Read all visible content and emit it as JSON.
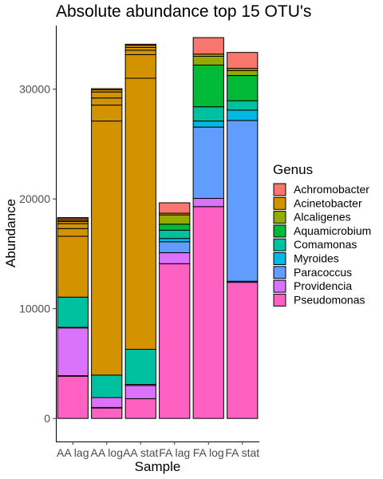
{
  "chart_data": {
    "type": "bar",
    "stacked": true,
    "title": "Absolute abundance top 15 OTU's",
    "xlabel": "Sample",
    "ylabel": "Abundance",
    "ylim": [
      -2100,
      35800
    ],
    "yticks": [
      0,
      10000,
      20000,
      30000
    ],
    "grid": false,
    "legend_position": "right",
    "legend_title": "Genus",
    "categories": [
      "AA lag",
      "AA log",
      "AA stat",
      "FA lag",
      "FA log",
      "FA stat"
    ],
    "genera": [
      {
        "name": "Achromobacter",
        "color": "#F8766D"
      },
      {
        "name": "Acinetobacter",
        "color": "#D39200"
      },
      {
        "name": "Alcaligenes",
        "color": "#93AA00"
      },
      {
        "name": "Aquamicrobium",
        "color": "#00BA38"
      },
      {
        "name": "Comamonas",
        "color": "#00C19F"
      },
      {
        "name": "Myroides",
        "color": "#00B9E3"
      },
      {
        "name": "Paracoccus",
        "color": "#619CFF"
      },
      {
        "name": "Providencia",
        "color": "#DB72FB"
      },
      {
        "name": "Pseudomonas",
        "color": "#FF61C3"
      }
    ],
    "bars": [
      {
        "category": "AA lag",
        "segments": [
          {
            "genus": "Pseudomonas",
            "value": 3850
          },
          {
            "genus": "Providencia",
            "value": 50
          },
          {
            "genus": "Providencia",
            "value": 4350
          },
          {
            "genus": "Comamonas",
            "value": 50
          },
          {
            "genus": "Comamonas",
            "value": 2750
          },
          {
            "genus": "Acinetobacter",
            "value": 5550
          },
          {
            "genus": "Acinetobacter",
            "value": 700
          },
          {
            "genus": "Acinetobacter",
            "value": 450
          },
          {
            "genus": "Acinetobacter",
            "value": 200
          },
          {
            "genus": "Acinetobacter",
            "value": 100
          },
          {
            "genus": "Acinetobacter",
            "value": 150
          },
          {
            "genus": "Achromobacter",
            "value": 100
          }
        ]
      },
      {
        "category": "AA log",
        "segments": [
          {
            "genus": "Pseudomonas",
            "value": 950
          },
          {
            "genus": "Providencia",
            "value": 50
          },
          {
            "genus": "Providencia",
            "value": 900
          },
          {
            "genus": "Comamonas",
            "value": 2050
          },
          {
            "genus": "Acinetobacter",
            "value": 23150
          },
          {
            "genus": "Acinetobacter",
            "value": 1450
          },
          {
            "genus": "Acinetobacter",
            "value": 650
          },
          {
            "genus": "Acinetobacter",
            "value": 550
          },
          {
            "genus": "Acinetobacter",
            "value": 200
          },
          {
            "genus": "Acinetobacter",
            "value": 100
          }
        ]
      },
      {
        "category": "AA stat",
        "segments": [
          {
            "genus": "Pseudomonas",
            "value": 1800
          },
          {
            "genus": "Providencia",
            "value": 1200
          },
          {
            "genus": "Providencia",
            "value": 100
          },
          {
            "genus": "Comamonas",
            "value": 3200
          },
          {
            "genus": "Acinetobacter",
            "value": 24700
          },
          {
            "genus": "Acinetobacter",
            "value": 2150
          },
          {
            "genus": "Acinetobacter",
            "value": 400
          },
          {
            "genus": "Acinetobacter",
            "value": 250
          },
          {
            "genus": "Acinetobacter",
            "value": 200
          },
          {
            "genus": "Achromobacter",
            "value": 100
          }
        ]
      },
      {
        "category": "FA lag",
        "segments": [
          {
            "genus": "Pseudomonas",
            "value": 14100
          },
          {
            "genus": "Providencia",
            "value": 1000
          },
          {
            "genus": "Paracoccus",
            "value": 1000
          },
          {
            "genus": "Myroides",
            "value": 300
          },
          {
            "genus": "Comamonas",
            "value": 750
          },
          {
            "genus": "Aquamicrobium",
            "value": 550
          },
          {
            "genus": "Alcaligenes",
            "value": 850
          },
          {
            "genus": "Acinetobacter",
            "value": 150
          },
          {
            "genus": "Achromobacter",
            "value": 950
          }
        ]
      },
      {
        "category": "FA log",
        "segments": [
          {
            "genus": "Pseudomonas",
            "value": 19300
          },
          {
            "genus": "Providencia",
            "value": 750
          },
          {
            "genus": "Paracoccus",
            "value": 6500
          },
          {
            "genus": "Myroides",
            "value": 550
          },
          {
            "genus": "Comamonas",
            "value": 1300
          },
          {
            "genus": "Aquamicrobium",
            "value": 3800
          },
          {
            "genus": "Alcaligenes",
            "value": 800
          },
          {
            "genus": "Acinetobacter",
            "value": 200
          },
          {
            "genus": "Achromobacter",
            "value": 1500
          }
        ]
      },
      {
        "category": "FA stat",
        "segments": [
          {
            "genus": "Pseudomonas",
            "value": 12400
          },
          {
            "genus": "Providencia",
            "value": 100
          },
          {
            "genus": "Paracoccus",
            "value": 14650
          },
          {
            "genus": "Myroides",
            "value": 950
          },
          {
            "genus": "Comamonas",
            "value": 850
          },
          {
            "genus": "Aquamicrobium",
            "value": 2300
          },
          {
            "genus": "Alcaligenes",
            "value": 450
          },
          {
            "genus": "Acinetobacter",
            "value": 200
          },
          {
            "genus": "Achromobacter",
            "value": 1450
          }
        ]
      }
    ]
  }
}
